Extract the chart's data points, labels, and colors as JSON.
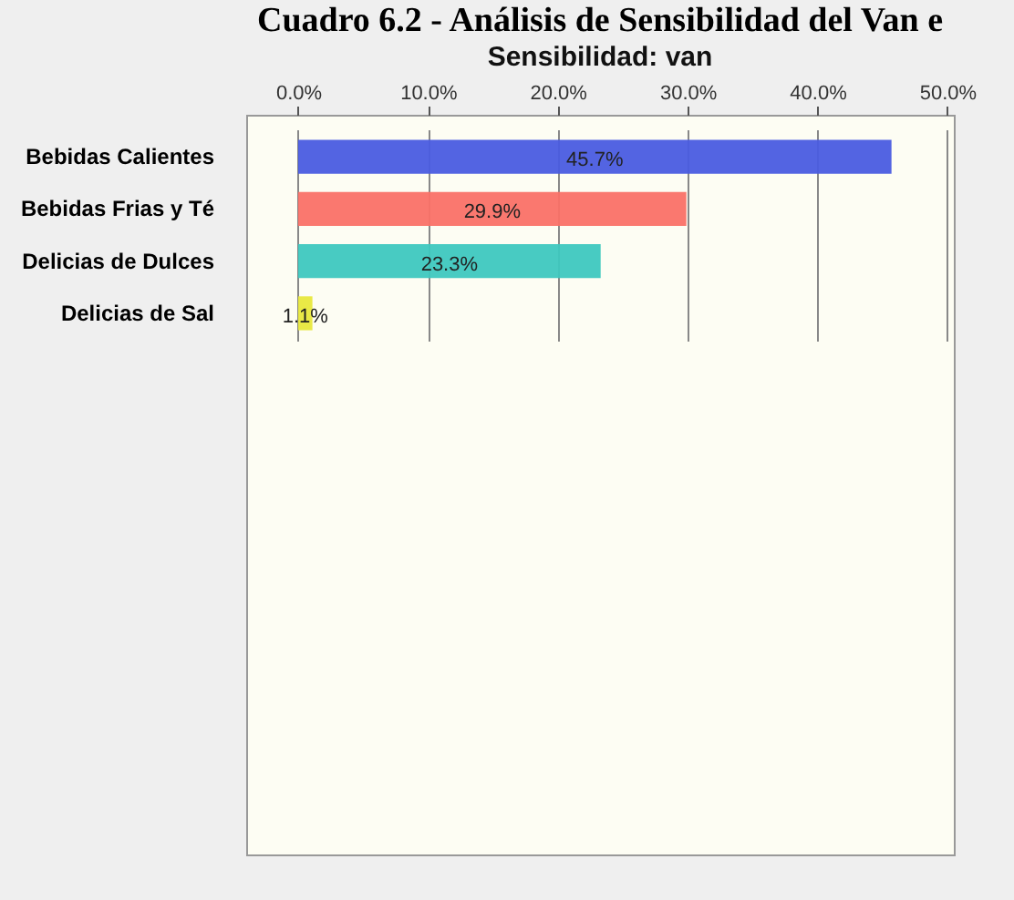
{
  "chart_data": {
    "type": "bar",
    "orientation": "horizontal",
    "title": "Cuadro 6.2 - Análisis de Sensibilidad del Van e",
    "subtitle": "Sensibilidad: van",
    "categories": [
      "Bebidas Calientes",
      "Bebidas Frias y Té",
      "Delicias de Dulces",
      "Delicias de Sal"
    ],
    "values": [
      45.7,
      29.9,
      23.3,
      1.1
    ],
    "colors": [
      "#4a5ce0",
      "#fa7167",
      "#3ec8bf",
      "#e8e83c"
    ],
    "value_labels": [
      "45.7%",
      "29.9%",
      "23.3%",
      "1.1%"
    ],
    "xlim": [
      -4,
      50.5
    ],
    "xticks": [
      {
        "value": 0,
        "label": "0.0%"
      },
      {
        "value": 10,
        "label": "10.0%"
      },
      {
        "value": 20,
        "label": "20.0%"
      },
      {
        "value": 30,
        "label": "30.0%"
      },
      {
        "value": 40,
        "label": "40.0%"
      },
      {
        "value": 50,
        "label": "50.0%"
      }
    ],
    "grid": "x"
  }
}
